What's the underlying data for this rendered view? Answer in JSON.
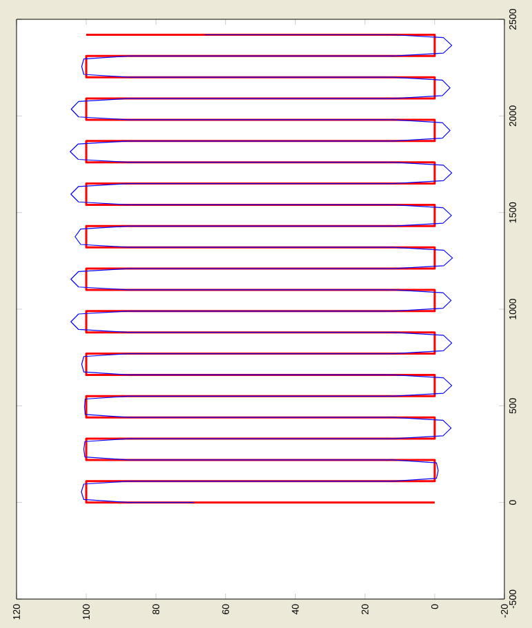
{
  "chart_data": {
    "type": "line",
    "xlim": [
      120,
      -20
    ],
    "ylim": [
      -500,
      2500
    ],
    "xticks": [
      120,
      100,
      80,
      60,
      40,
      20,
      0,
      -20
    ],
    "yticks": [
      -500,
      0,
      500,
      1000,
      1500,
      2000,
      2500
    ],
    "grid": false,
    "series": [
      {
        "color": "#ff0000",
        "x": [
          0,
          100,
          100,
          0,
          0,
          100,
          100,
          0,
          0,
          100,
          100,
          0,
          0,
          100,
          100,
          0,
          0,
          100,
          100,
          0,
          0,
          100,
          100,
          0,
          0,
          100,
          100,
          0,
          0,
          100,
          100,
          0,
          0,
          100,
          100,
          0,
          0,
          100,
          100,
          0,
          0,
          100,
          100,
          0,
          0,
          100
        ],
        "values": [
          0,
          0,
          110,
          110,
          220,
          220,
          330,
          330,
          440,
          440,
          550,
          550,
          660,
          660,
          770,
          770,
          880,
          880,
          990,
          990,
          1100,
          1100,
          1210,
          1210,
          1320,
          1320,
          1430,
          1430,
          1540,
          1540,
          1650,
          1650,
          1760,
          1760,
          1870,
          1870,
          1980,
          1980,
          2090,
          2090,
          2200,
          2200,
          2310,
          2310,
          2420,
          2420
        ]
      },
      {
        "color": "#0000ff",
        "x": [
          69,
          88,
          100.7,
          101.4,
          100.7,
          88,
          12,
          -0.5,
          -1.0,
          -0.5,
          12,
          88,
          100.4,
          100.7,
          100.4,
          88,
          12,
          -2.4,
          -4.7,
          -2.4,
          12,
          88,
          100.3,
          100.5,
          100.3,
          88,
          12,
          -2.5,
          -4.9,
          -2.5,
          12,
          88,
          100.7,
          101.3,
          100.7,
          88,
          12,
          -2.5,
          -4.9,
          -2.5,
          12,
          88,
          102.2,
          104.4,
          102.2,
          88,
          12,
          -2.4,
          -4.7,
          -2.4,
          12,
          88,
          102.2,
          104.4,
          102.2,
          88,
          12,
          -2.6,
          -5.1,
          -2.6,
          12,
          88,
          101.6,
          103.2,
          101.6,
          88,
          12,
          -2.4,
          -4.8,
          -2.4,
          12,
          88,
          102.2,
          104.4,
          102.2,
          88,
          12,
          -2.5,
          -4.9,
          -2.5,
          12,
          88,
          102.3,
          104.6,
          102.3,
          88,
          12,
          -2.2,
          -4.4,
          -2.2,
          12,
          88,
          102.2,
          104.3,
          102.2,
          88,
          12,
          -2.2,
          -4.4,
          -2.2,
          12,
          88,
          100.7,
          101.3,
          100.7,
          88,
          12,
          -2.5,
          -4.9,
          -2.5,
          12,
          66
        ],
        "values": [
          0,
          0,
          15,
          55,
          95,
          110,
          110,
          125,
          165,
          205,
          220,
          220,
          235,
          275,
          315,
          330,
          330,
          345,
          385,
          425,
          440,
          440,
          455,
          495,
          535,
          550,
          550,
          565,
          605,
          645,
          660,
          660,
          675,
          715,
          755,
          770,
          770,
          785,
          825,
          865,
          880,
          880,
          895,
          935,
          975,
          990,
          990,
          1005,
          1045,
          1085,
          1100,
          1100,
          1115,
          1155,
          1195,
          1210,
          1210,
          1225,
          1265,
          1305,
          1320,
          1320,
          1335,
          1375,
          1415,
          1430,
          1430,
          1445,
          1485,
          1525,
          1540,
          1540,
          1555,
          1595,
          1635,
          1650,
          1650,
          1665,
          1705,
          1745,
          1760,
          1760,
          1775,
          1815,
          1855,
          1870,
          1870,
          1885,
          1925,
          1965,
          1980,
          1980,
          1995,
          2035,
          2075,
          2090,
          2090,
          2105,
          2145,
          2185,
          2200,
          2200,
          2215,
          2255,
          2295,
          2310,
          2310,
          2325,
          2365,
          2405,
          2420,
          2420
        ]
      }
    ]
  }
}
